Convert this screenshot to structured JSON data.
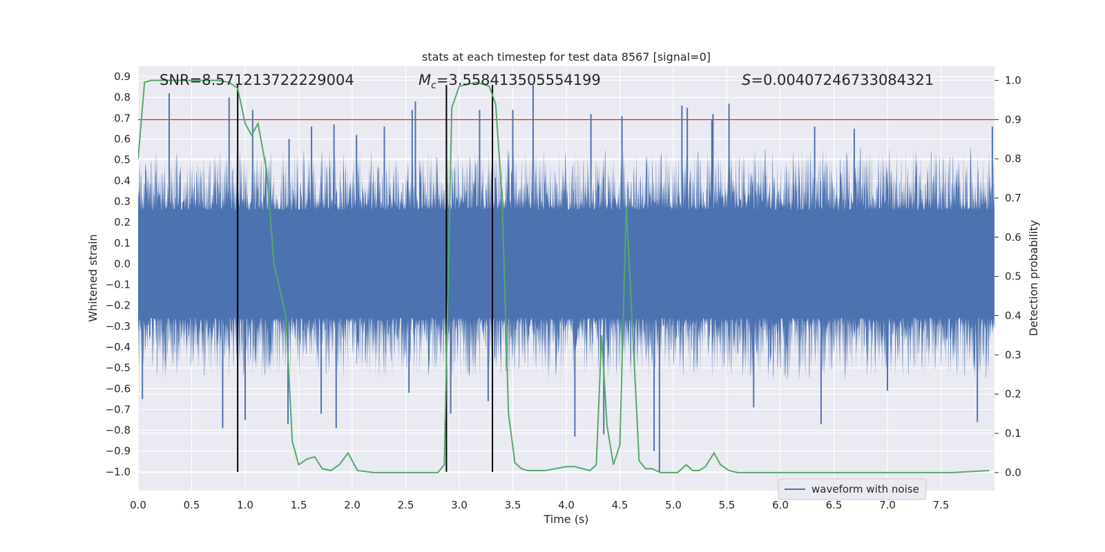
{
  "chart_data": {
    "type": "line",
    "title": "stats at each timestep for test data 8567 [signal=0]",
    "xlabel": "Time (s)",
    "ylabel_left": "Whitened strain",
    "ylabel_right": "Detection probability",
    "xlim": [
      0.0,
      8.0
    ],
    "ylim_left": [
      -1.09,
      0.95
    ],
    "ylim_right": [
      -0.046,
      1.036
    ],
    "x_ticks": [
      0.0,
      0.5,
      1.0,
      1.5,
      2.0,
      2.5,
      3.0,
      3.5,
      4.0,
      4.5,
      5.0,
      5.5,
      6.0,
      6.5,
      7.0,
      7.5
    ],
    "x_tick_labels": [
      "0.0",
      "0.5",
      "1.0",
      "1.5",
      "2.0",
      "2.5",
      "3.0",
      "3.5",
      "4.0",
      "4.5",
      "5.0",
      "5.5",
      "6.0",
      "6.5",
      "7.0",
      "7.5"
    ],
    "y_left_ticks": [
      -1.0,
      -0.9,
      -0.8,
      -0.7,
      -0.6,
      -0.5,
      -0.4,
      -0.3,
      -0.2,
      -0.1,
      0.0,
      0.1,
      0.2,
      0.3,
      0.4,
      0.5,
      0.6,
      0.7,
      0.8,
      0.9
    ],
    "y_left_tick_labels": [
      "−1.0",
      "−0.9",
      "−0.8",
      "−0.7",
      "−0.6",
      "−0.5",
      "−0.4",
      "−0.3",
      "−0.2",
      "−0.1",
      "0.0",
      "0.1",
      "0.2",
      "0.3",
      "0.4",
      "0.5",
      "0.6",
      "0.7",
      "0.8",
      "0.9"
    ],
    "y_right_ticks": [
      0.0,
      0.1,
      0.2,
      0.3,
      0.4,
      0.5,
      0.6,
      0.7,
      0.8,
      0.9,
      1.0
    ],
    "y_right_tick_labels": [
      "0.0",
      "0.1",
      "0.2",
      "0.3",
      "0.4",
      "0.5",
      "0.6",
      "0.7",
      "0.8",
      "0.9",
      "1.0"
    ],
    "grid": true,
    "legend": {
      "placement": "lower-right",
      "entries": [
        "waveform with noise"
      ]
    },
    "annotations": {
      "snr": "SNR=8.571213722229004",
      "mc_symbol": "M",
      "mc_sub": "c",
      "mc_value": "=3.558413505554199",
      "s_symbol": "S",
      "s_value": "=0.00407246733084321"
    },
    "threshold_right": 0.9,
    "vertical_markers_x": [
      0.93,
      2.88,
      3.31
    ],
    "vertical_marker_y_top_left": 0.86,
    "waveform": {
      "name": "waveform with noise",
      "color": "#4c72b0",
      "description_duration_s": 8.0,
      "spikes_up": [
        [
          0.29,
          0.82
        ],
        [
          0.85,
          0.8
        ],
        [
          1.07,
          0.74
        ],
        [
          1.41,
          0.6
        ],
        [
          1.62,
          0.66
        ],
        [
          1.83,
          0.67
        ],
        [
          2.04,
          0.62
        ],
        [
          2.3,
          0.66
        ],
        [
          2.56,
          0.74
        ],
        [
          2.59,
          0.78
        ],
        [
          2.88,
          0.7
        ],
        [
          3.19,
          0.74
        ],
        [
          3.5,
          0.74
        ],
        [
          3.69,
          0.86
        ],
        [
          4.23,
          0.72
        ],
        [
          4.52,
          0.71
        ],
        [
          5.08,
          0.76
        ],
        [
          5.13,
          0.75
        ],
        [
          5.36,
          0.69
        ],
        [
          5.37,
          0.72
        ],
        [
          5.52,
          0.77
        ],
        [
          6.32,
          0.66
        ],
        [
          6.69,
          0.65
        ],
        [
          7.98,
          0.66
        ]
      ],
      "spikes_down": [
        [
          0.04,
          -0.65
        ],
        [
          0.79,
          -0.79
        ],
        [
          1.0,
          -0.75
        ],
        [
          1.4,
          -0.77
        ],
        [
          1.71,
          -0.72
        ],
        [
          1.85,
          -0.79
        ],
        [
          2.53,
          -0.62
        ],
        [
          2.92,
          -0.72
        ],
        [
          3.27,
          -0.66
        ],
        [
          4.08,
          -0.83
        ],
        [
          4.35,
          -0.82
        ],
        [
          4.82,
          -0.9
        ],
        [
          4.87,
          -1.0
        ],
        [
          5.75,
          -0.69
        ],
        [
          6.38,
          -0.77
        ],
        [
          7.0,
          -0.61
        ],
        [
          7.84,
          -0.76
        ]
      ]
    },
    "detection_probability": {
      "color": "#55a868",
      "x": [
        0.0,
        0.06,
        0.12,
        0.2,
        0.3,
        0.45,
        0.6,
        0.75,
        0.85,
        0.93,
        1.0,
        1.06,
        1.12,
        1.2,
        1.27,
        1.33,
        1.38,
        1.44,
        1.5,
        1.58,
        1.65,
        1.72,
        1.8,
        1.88,
        1.96,
        2.05,
        2.2,
        2.4,
        2.6,
        2.8,
        2.86,
        2.93,
        3.0,
        3.08,
        3.16,
        3.22,
        3.28,
        3.34,
        3.4,
        3.46,
        3.52,
        3.58,
        3.64,
        3.72,
        3.8,
        3.9,
        4.0,
        4.08,
        4.15,
        4.22,
        4.28,
        4.33,
        4.38,
        4.44,
        4.5,
        4.56,
        4.62,
        4.68,
        4.74,
        4.8,
        4.88,
        4.96,
        5.04,
        5.12,
        5.18,
        5.24,
        5.3,
        5.38,
        5.44,
        5.52,
        5.6,
        5.8,
        6.0,
        6.3,
        6.6,
        7.0,
        7.3,
        7.6,
        7.95
      ],
      "y": [
        0.8,
        0.995,
        1.0,
        1.0,
        1.0,
        1.0,
        1.0,
        1.0,
        0.995,
        0.98,
        0.89,
        0.86,
        0.89,
        0.77,
        0.53,
        0.46,
        0.4,
        0.08,
        0.02,
        0.035,
        0.04,
        0.01,
        0.005,
        0.02,
        0.05,
        0.005,
        0.0,
        0.0,
        0.0,
        0.0,
        0.02,
        0.93,
        0.985,
        0.99,
        0.995,
        0.99,
        0.985,
        0.94,
        0.7,
        0.15,
        0.025,
        0.01,
        0.005,
        0.005,
        0.005,
        0.01,
        0.015,
        0.015,
        0.01,
        0.005,
        0.02,
        0.35,
        0.12,
        0.02,
        0.07,
        0.68,
        0.36,
        0.03,
        0.01,
        0.01,
        0.0,
        0.0,
        0.0,
        0.02,
        0.005,
        0.005,
        0.015,
        0.05,
        0.02,
        0.005,
        0.0,
        0.0,
        0.0,
        0.0,
        0.0,
        0.0,
        0.0,
        0.0,
        0.005
      ]
    }
  }
}
